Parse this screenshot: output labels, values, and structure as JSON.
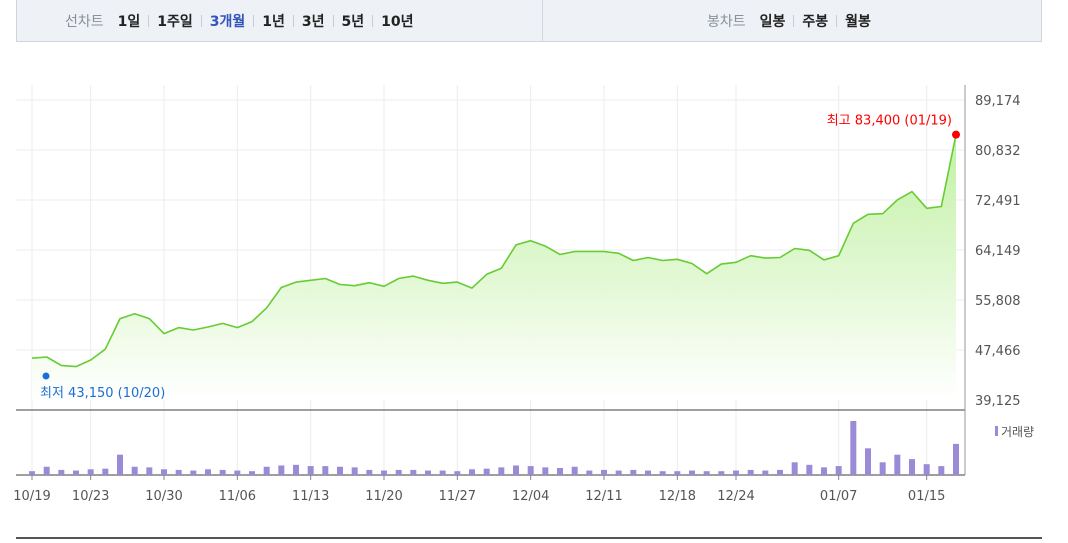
{
  "toolbar": {
    "line_label": "선차트",
    "line_items": [
      {
        "label": "1일",
        "active": false
      },
      {
        "label": "1주일",
        "active": false
      },
      {
        "label": "3개월",
        "active": true
      },
      {
        "label": "1년",
        "active": false
      },
      {
        "label": "3년",
        "active": false
      },
      {
        "label": "5년",
        "active": false
      },
      {
        "label": "10년",
        "active": false
      }
    ],
    "candle_label": "봉차트",
    "candle_items": [
      {
        "label": "일봉"
      },
      {
        "label": "주봉"
      },
      {
        "label": "월봉"
      }
    ]
  },
  "chart_data": {
    "type": "area",
    "y_ticks": [
      "89,174",
      "80,832",
      "72,491",
      "64,149",
      "55,808",
      "47,466",
      "39,125"
    ],
    "ylim": [
      39125,
      89174
    ],
    "x_ticks": [
      "10/19",
      "10/23",
      "10/30",
      "11/06",
      "11/13",
      "11/20",
      "11/27",
      "12/04",
      "12/11",
      "12/18",
      "12/24",
      "01/07",
      "01/15"
    ],
    "x_tick_index": [
      0,
      4,
      9,
      14,
      19,
      24,
      29,
      34,
      39,
      44,
      48,
      55,
      61
    ],
    "values": [
      46100,
      46300,
      44900,
      44700,
      45800,
      47600,
      52700,
      53500,
      52700,
      50200,
      51200,
      50800,
      51300,
      51900,
      51200,
      52200,
      54500,
      57900,
      58800,
      59100,
      59400,
      58400,
      58200,
      58700,
      58100,
      59400,
      59800,
      59100,
      58600,
      58800,
      57800,
      60100,
      61100,
      65000,
      65700,
      64800,
      63400,
      63900,
      63900,
      63900,
      63600,
      62400,
      62900,
      62400,
      62600,
      61900,
      60200,
      61800,
      62100,
      63200,
      62800,
      62900,
      64400,
      64100,
      62500,
      63200,
      68600,
      70100,
      70200,
      72500,
      73900,
      71100,
      71400,
      83400
    ],
    "volume": [
      6,
      13,
      8,
      7,
      9,
      10,
      32,
      13,
      12,
      9,
      8,
      7,
      9,
      8,
      7,
      6,
      13,
      15,
      16,
      14,
      14,
      13,
      12,
      8,
      7,
      8,
      8,
      7,
      7,
      6,
      9,
      10,
      12,
      15,
      14,
      12,
      11,
      13,
      7,
      8,
      7,
      8,
      7,
      6,
      6,
      7,
      6,
      6,
      7,
      8,
      7,
      8,
      20,
      16,
      12,
      14,
      85,
      42,
      20,
      32,
      25,
      17,
      14,
      49
    ],
    "max_annotation": "최고 83,400 (01/19)",
    "min_annotation": "최저 43,150 (10/20)",
    "max_index": 63,
    "max_value": 83400,
    "min_index": 1,
    "min_value": 43150,
    "volume_legend": "거래량",
    "line_color": "#66cc33",
    "fill_color": "#c8f0a8",
    "volume_color": "#9b8ad6",
    "max_color": "#ff0000",
    "min_color": "#1a6fd6",
    "grid": true
  }
}
